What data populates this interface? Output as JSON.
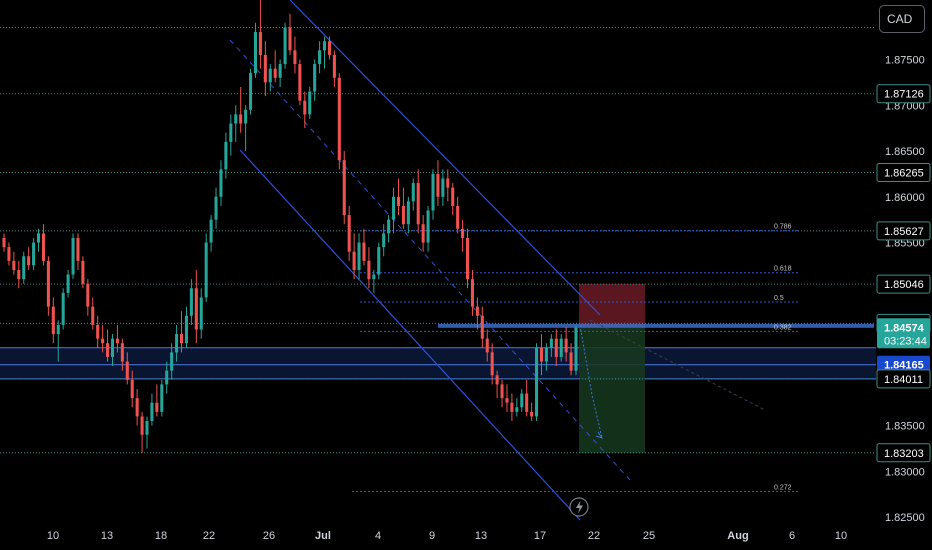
{
  "currency": "CAD",
  "colors": {
    "background": "#000000",
    "bull": "#26a69a",
    "bear": "#ef5350",
    "level_line": "#3a8f8a",
    "channel": "#2f4fd8",
    "zone": "#1b3b8c",
    "current_price": "#26a69a",
    "highlight_price": "#1848cc",
    "risk": "#7a1f2b",
    "reward": "#16381f"
  },
  "chart_data": {
    "type": "candlestick",
    "ylim": [
      1.8225,
      1.8815
    ],
    "x_ticks": [
      "10",
      "13",
      "18",
      "22",
      "26",
      "Jul",
      "4",
      "9",
      "13",
      "17",
      "22",
      "25",
      "Aug",
      "6",
      "10"
    ],
    "y_ticks": [
      "1.87500",
      "1.87000",
      "1.86500",
      "1.86000",
      "1.85500",
      "1.84500",
      "1.83500",
      "1.83000",
      "1.82500"
    ],
    "levels": [
      1.87126,
      1.86265,
      1.85627,
      1.85046,
      1.84617,
      1.84011,
      1.83203
    ],
    "top_line": 1.8785,
    "badges": [
      {
        "value": "1.87126"
      },
      {
        "value": "1.86265"
      },
      {
        "value": "1.85627"
      },
      {
        "value": "1.85046"
      },
      {
        "value": "1.84617"
      },
      {
        "value": "1.84574",
        "countdown": "03:23:44",
        "kind": "current"
      },
      {
        "value": "1.84165",
        "kind": "highlight"
      },
      {
        "value": "1.84011"
      },
      {
        "value": "1.83203"
      }
    ],
    "zone": [
      1.8401,
      1.8435
    ],
    "fib_levels": [
      {
        "label": "0.786",
        "value": 1.8563
      },
      {
        "label": "0.618",
        "value": 1.8517
      },
      {
        "label": "0.5",
        "value": 1.8485
      },
      {
        "label": "0.382",
        "value": 1.8453
      },
      {
        "label": "0.272",
        "value": 1.8278
      }
    ],
    "position": {
      "entry": 1.8457,
      "stop": 1.8505,
      "target": 1.832
    },
    "candles": [
      [
        1.8555,
        1.856,
        1.854,
        1.8545
      ],
      [
        1.8545,
        1.855,
        1.8525,
        1.853
      ],
      [
        1.853,
        1.854,
        1.8515,
        1.852
      ],
      [
        1.852,
        1.853,
        1.85,
        1.851
      ],
      [
        1.851,
        1.854,
        1.8505,
        1.8535
      ],
      [
        1.8535,
        1.8545,
        1.852,
        1.8525
      ],
      [
        1.8525,
        1.8555,
        1.852,
        1.855
      ],
      [
        1.855,
        1.8565,
        1.854,
        1.856
      ],
      [
        1.856,
        1.857,
        1.8525,
        1.853
      ],
      [
        1.853,
        1.8535,
        1.847,
        1.848
      ],
      [
        1.848,
        1.849,
        1.844,
        1.845
      ],
      [
        1.845,
        1.8465,
        1.842,
        1.846
      ],
      [
        1.846,
        1.85,
        1.8455,
        1.8495
      ],
      [
        1.8495,
        1.852,
        1.849,
        1.8515
      ],
      [
        1.8515,
        1.856,
        1.851,
        1.8555
      ],
      [
        1.8555,
        1.856,
        1.852,
        1.853
      ],
      [
        1.853,
        1.8535,
        1.85,
        1.8505
      ],
      [
        1.8505,
        1.851,
        1.847,
        1.848
      ],
      [
        1.848,
        1.849,
        1.8455,
        1.846
      ],
      [
        1.846,
        1.847,
        1.8435,
        1.8445
      ],
      [
        1.8445,
        1.846,
        1.843,
        1.844
      ],
      [
        1.844,
        1.8455,
        1.842,
        1.8425
      ],
      [
        1.8425,
        1.845,
        1.8415,
        1.8445
      ],
      [
        1.8445,
        1.846,
        1.843,
        1.844
      ],
      [
        1.844,
        1.8445,
        1.841,
        1.842
      ],
      [
        1.842,
        1.843,
        1.8395,
        1.84
      ],
      [
        1.84,
        1.841,
        1.837,
        1.838
      ],
      [
        1.838,
        1.839,
        1.835,
        1.836
      ],
      [
        1.836,
        1.8365,
        1.832,
        1.834
      ],
      [
        1.834,
        1.836,
        1.8325,
        1.8355
      ],
      [
        1.8355,
        1.8385,
        1.835,
        1.8375
      ],
      [
        1.8375,
        1.8395,
        1.836,
        1.8365
      ],
      [
        1.8365,
        1.84,
        1.836,
        1.8395
      ],
      [
        1.8395,
        1.842,
        1.8385,
        1.841
      ],
      [
        1.841,
        1.844,
        1.84,
        1.843
      ],
      [
        1.843,
        1.846,
        1.842,
        1.845
      ],
      [
        1.845,
        1.8475,
        1.843,
        1.844
      ],
      [
        1.844,
        1.848,
        1.8435,
        1.847
      ],
      [
        1.847,
        1.851,
        1.846,
        1.85
      ],
      [
        1.85,
        1.852,
        1.844,
        1.8455
      ],
      [
        1.8455,
        1.85,
        1.8445,
        1.849
      ],
      [
        1.849,
        1.856,
        1.8485,
        1.855
      ],
      [
        1.855,
        1.858,
        1.854,
        1.8575
      ],
      [
        1.8575,
        1.861,
        1.8565,
        1.86
      ],
      [
        1.86,
        1.864,
        1.859,
        1.863
      ],
      [
        1.863,
        1.867,
        1.862,
        1.866
      ],
      [
        1.866,
        1.869,
        1.8645,
        1.868
      ],
      [
        1.868,
        1.87,
        1.866,
        1.869
      ],
      [
        1.869,
        1.872,
        1.867,
        1.868
      ],
      [
        1.868,
        1.87,
        1.865,
        1.8695
      ],
      [
        1.8695,
        1.874,
        1.869,
        1.8735
      ],
      [
        1.8735,
        1.879,
        1.873,
        1.878
      ],
      [
        1.878,
        1.8815,
        1.874,
        1.8755
      ],
      [
        1.8755,
        1.877,
        1.871,
        1.8725
      ],
      [
        1.8725,
        1.8745,
        1.8715,
        1.874
      ],
      [
        1.874,
        1.876,
        1.8725,
        1.873
      ],
      [
        1.873,
        1.875,
        1.872,
        1.8745
      ],
      [
        1.8745,
        1.879,
        1.874,
        1.8785
      ],
      [
        1.8785,
        1.88,
        1.8755,
        1.876
      ],
      [
        1.876,
        1.8775,
        1.8735,
        1.8745
      ],
      [
        1.8745,
        1.875,
        1.87,
        1.8705
      ],
      [
        1.8705,
        1.8715,
        1.8675,
        1.869
      ],
      [
        1.869,
        1.872,
        1.8685,
        1.8715
      ],
      [
        1.8715,
        1.875,
        1.8705,
        1.8745
      ],
      [
        1.8745,
        1.877,
        1.8735,
        1.876
      ],
      [
        1.876,
        1.8775,
        1.874,
        1.877
      ],
      [
        1.877,
        1.8775,
        1.875,
        1.8755
      ],
      [
        1.8755,
        1.876,
        1.872,
        1.873
      ],
      [
        1.873,
        1.8735,
        1.863,
        1.864
      ],
      [
        1.864,
        1.865,
        1.857,
        1.858
      ],
      [
        1.858,
        1.859,
        1.853,
        1.854
      ],
      [
        1.854,
        1.856,
        1.851,
        1.852
      ],
      [
        1.852,
        1.856,
        1.851,
        1.855
      ],
      [
        1.855,
        1.8565,
        1.8525,
        1.853
      ],
      [
        1.853,
        1.8545,
        1.85,
        1.851
      ],
      [
        1.851,
        1.852,
        1.8495,
        1.8515
      ],
      [
        1.8515,
        1.855,
        1.851,
        1.8545
      ],
      [
        1.8545,
        1.857,
        1.8535,
        1.856
      ],
      [
        1.856,
        1.858,
        1.855,
        1.8575
      ],
      [
        1.8575,
        1.861,
        1.856,
        1.86
      ],
      [
        1.86,
        1.862,
        1.858,
        1.859
      ],
      [
        1.859,
        1.861,
        1.8565,
        1.857
      ],
      [
        1.857,
        1.86,
        1.856,
        1.8595
      ],
      [
        1.8595,
        1.862,
        1.8585,
        1.8615
      ],
      [
        1.8615,
        1.863,
        1.856,
        1.857
      ],
      [
        1.857,
        1.858,
        1.854,
        1.855
      ],
      [
        1.855,
        1.859,
        1.854,
        1.8585
      ],
      [
        1.8585,
        1.863,
        1.8575,
        1.8625
      ],
      [
        1.8625,
        1.864,
        1.859,
        1.86
      ],
      [
        1.86,
        1.863,
        1.859,
        1.862
      ],
      [
        1.862,
        1.863,
        1.8595,
        1.861
      ],
      [
        1.861,
        1.8615,
        1.858,
        1.859
      ],
      [
        1.859,
        1.86,
        1.856,
        1.8565
      ],
      [
        1.8565,
        1.8575,
        1.854,
        1.8555
      ],
      [
        1.8555,
        1.8565,
        1.85,
        1.851
      ],
      [
        1.851,
        1.852,
        1.847,
        1.848
      ],
      [
        1.848,
        1.849,
        1.8455,
        1.847
      ],
      [
        1.847,
        1.848,
        1.8435,
        1.8445
      ],
      [
        1.8445,
        1.8455,
        1.842,
        1.843
      ],
      [
        1.843,
        1.844,
        1.8395,
        1.8405
      ],
      [
        1.8405,
        1.841,
        1.838,
        1.8395
      ],
      [
        1.8395,
        1.84,
        1.837,
        1.838
      ],
      [
        1.838,
        1.8395,
        1.8365,
        1.8375
      ],
      [
        1.8375,
        1.8385,
        1.8355,
        1.8365
      ],
      [
        1.8365,
        1.838,
        1.836,
        1.837
      ],
      [
        1.837,
        1.839,
        1.8365,
        1.8385
      ],
      [
        1.8385,
        1.84,
        1.836,
        1.8365
      ],
      [
        1.8365,
        1.8375,
        1.8355,
        1.836
      ],
      [
        1.836,
        1.844,
        1.8355,
        1.8435
      ],
      [
        1.8435,
        1.845,
        1.8405,
        1.842
      ],
      [
        1.842,
        1.844,
        1.841,
        1.8435
      ],
      [
        1.8435,
        1.845,
        1.8425,
        1.8445
      ],
      [
        1.8445,
        1.8455,
        1.8415,
        1.8425
      ],
      [
        1.8425,
        1.845,
        1.842,
        1.8445
      ],
      [
        1.8445,
        1.8458,
        1.842,
        1.843
      ],
      [
        1.843,
        1.844,
        1.8405,
        1.841
      ],
      [
        1.841,
        1.846,
        1.8405,
        1.8457
      ]
    ]
  }
}
